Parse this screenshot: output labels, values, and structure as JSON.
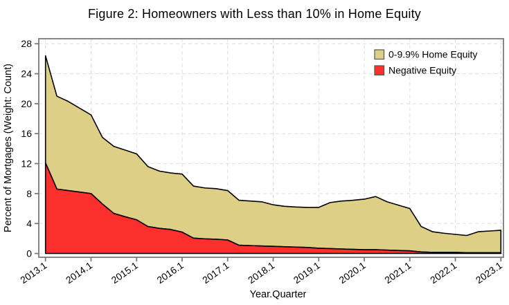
{
  "title": "Figure 2: Homeowners with Less than 10% in Home Equity",
  "colors": {
    "home_equity_fill": "#ddcf85",
    "negative_equity_fill": "#fb2f2b",
    "area_outline": "#000000",
    "frame": "#7a7a7a",
    "grid": "#dedede",
    "text": "#000000",
    "legend_swatch_border": "#555555"
  },
  "axes": {
    "xlabel": "Year.Quarter",
    "ylabel": "Percent of Mortgages (Weight: Count)",
    "yticks": [
      0,
      4,
      8,
      12,
      16,
      20,
      24,
      28
    ],
    "ylim": [
      0,
      28
    ],
    "x_year_ticks": [
      "2013.1",
      "2014.1",
      "2015.1",
      "2016.1",
      "2017.1",
      "2018.1",
      "2019.1",
      "2020.1",
      "2021.1",
      "2022.1",
      "2023.1"
    ],
    "x_tick_every": 4
  },
  "legend": {
    "items": [
      {
        "label": "0-9.9% Home Equity",
        "color": "#ddcf85"
      },
      {
        "label": "Negative Equity",
        "color": "#fb2f2b"
      }
    ]
  },
  "chart_data": {
    "type": "area",
    "stacked": true,
    "title": "Figure 2: Homeowners with Less than 10% in Home Equity",
    "xlabel": "Year.Quarter",
    "ylabel": "Percent of Mortgages (Weight: Count)",
    "ylim": [
      0,
      28
    ],
    "grid": true,
    "legend_position": "top-right",
    "x_labels": [
      "2013.1",
      "2013.2",
      "2013.3",
      "2013.4",
      "2014.1",
      "2014.2",
      "2014.3",
      "2014.4",
      "2015.1",
      "2015.2",
      "2015.3",
      "2015.4",
      "2016.1",
      "2016.2",
      "2016.3",
      "2016.4",
      "2017.1",
      "2017.2",
      "2017.3",
      "2017.4",
      "2018.1",
      "2018.2",
      "2018.3",
      "2018.4",
      "2019.1",
      "2019.2",
      "2019.3",
      "2019.4",
      "2020.1",
      "2020.2",
      "2020.3",
      "2020.4",
      "2021.1",
      "2021.2",
      "2021.3",
      "2021.4",
      "2022.1",
      "2022.2",
      "2022.3",
      "2022.4",
      "2023.1"
    ],
    "series": [
      {
        "name": "Negative Equity",
        "color": "#fb2f2b",
        "values": [
          12.1,
          8.6,
          8.4,
          8.2,
          8.0,
          6.6,
          5.35,
          4.9,
          4.5,
          3.6,
          3.35,
          3.2,
          2.85,
          2.05,
          1.95,
          1.9,
          1.8,
          1.1,
          1.05,
          1.0,
          0.95,
          0.9,
          0.85,
          0.8,
          0.7,
          0.65,
          0.6,
          0.55,
          0.5,
          0.5,
          0.45,
          0.4,
          0.35,
          0.2,
          0.15,
          0.15,
          0.15,
          0.1,
          0.1,
          0.1,
          0.1
        ]
      },
      {
        "name": "0-9.9% Home Equity",
        "color": "#ddcf85",
        "values": [
          14.3,
          12.4,
          11.9,
          11.2,
          10.5,
          8.9,
          8.95,
          8.9,
          8.8,
          8.0,
          7.65,
          7.55,
          7.75,
          6.95,
          6.8,
          6.75,
          6.6,
          6.0,
          5.95,
          5.9,
          5.55,
          5.4,
          5.35,
          5.35,
          5.45,
          6.15,
          6.4,
          6.55,
          6.75,
          7.1,
          6.45,
          6.05,
          5.65,
          3.4,
          2.75,
          2.55,
          2.4,
          2.3,
          2.8,
          2.9,
          3.0
        ]
      }
    ],
    "note": "series[1] values are the 0-9.9% band stacked on top of Negative Equity; total with <10% equity = sum of both series"
  }
}
